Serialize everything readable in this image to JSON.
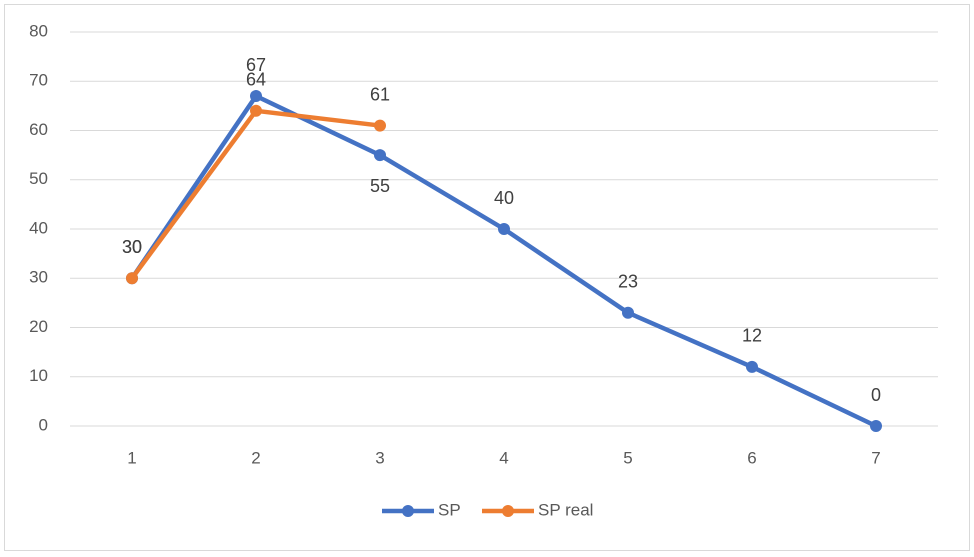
{
  "chart_data": {
    "type": "line",
    "categories": [
      1,
      2,
      3,
      4,
      5,
      6,
      7
    ],
    "series": [
      {
        "name": "SP",
        "color": "#4472c4",
        "values": [
          30,
          67,
          55,
          40,
          23,
          12,
          0
        ]
      },
      {
        "name": "SP real",
        "color": "#ed7d31",
        "values": [
          30,
          64,
          61,
          null,
          null,
          null,
          null
        ]
      }
    ],
    "ylim": [
      0,
      80
    ],
    "yticks": [
      0,
      10,
      20,
      30,
      40,
      50,
      60,
      70,
      80
    ],
    "grid": true,
    "legend": "bottom"
  }
}
